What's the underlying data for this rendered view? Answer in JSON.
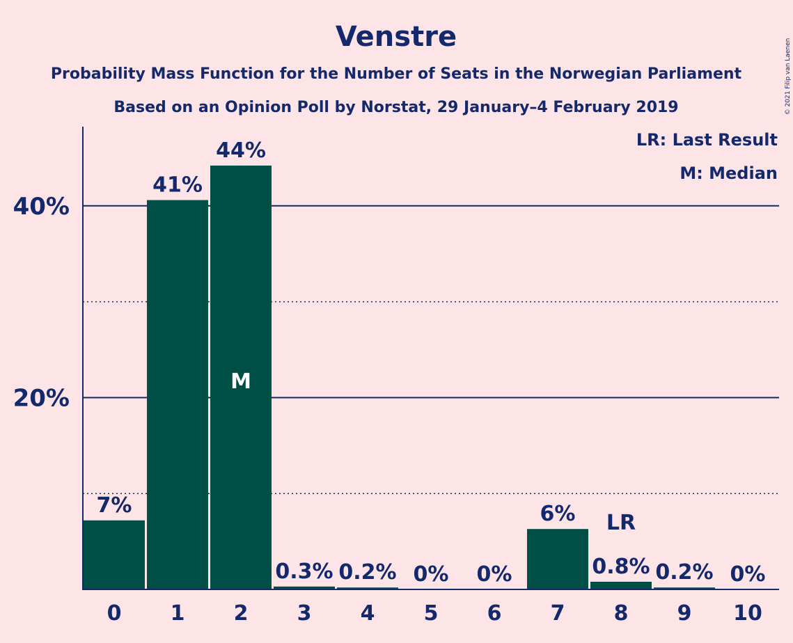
{
  "colors": {
    "background": "#fde4e6",
    "bar": "#004f47",
    "text": "#13296b",
    "median_label": "#ffffff"
  },
  "header": {
    "title": "Venstre",
    "subtitle1": "Probability Mass Function for the Number of Seats in the Norwegian Parliament",
    "subtitle2": "Based on an Opinion Poll by Norstat, 29 January–4 February 2019"
  },
  "legend": {
    "lr": "LR: Last Result",
    "m": "M: Median"
  },
  "copyright": "© 2021 Filip van Laenen",
  "chart_data": {
    "type": "bar",
    "title": "Venstre",
    "categories": [
      "0",
      "1",
      "2",
      "3",
      "4",
      "5",
      "6",
      "7",
      "8",
      "9",
      "10"
    ],
    "values": [
      7.2,
      40.6,
      44.2,
      0.3,
      0.2,
      0,
      0,
      6.3,
      0.8,
      0.2,
      0
    ],
    "data_labels": [
      "7%",
      "41%",
      "44%",
      "0.3%",
      "0.2%",
      "0%",
      "0%",
      "6%",
      "0.8%",
      "0.2%",
      "0%"
    ],
    "ylim": [
      0,
      48
    ],
    "yticks": [
      {
        "value": 20,
        "label": "20%"
      },
      {
        "value": 40,
        "label": "40%"
      }
    ],
    "minor_gridlines": [
      10,
      30
    ],
    "median_seat": "2",
    "median_label": "M",
    "last_result_seat": "8",
    "last_result_label": "LR",
    "legend_position": "top-right",
    "grid": true
  }
}
